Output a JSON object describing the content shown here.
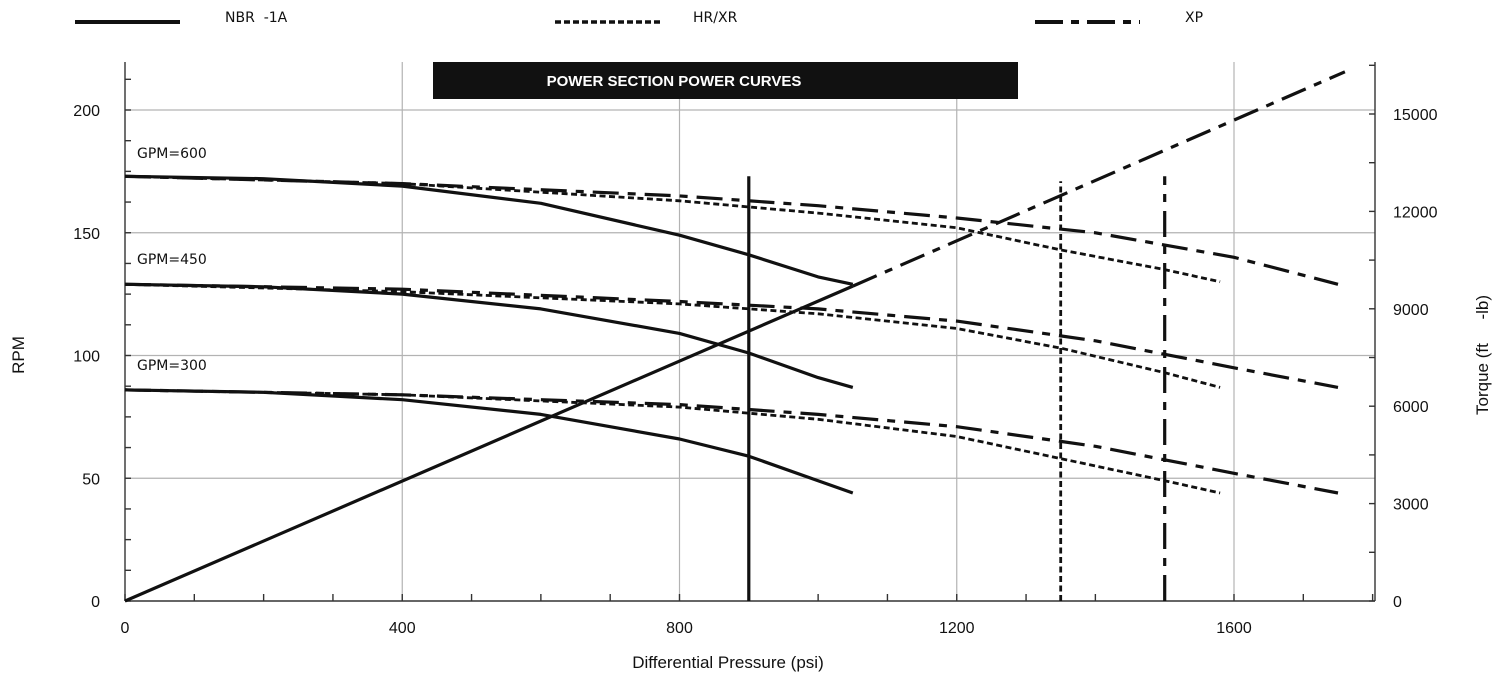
{
  "chart_data": {
    "type": "line",
    "title": "POWER SECTION POWER CURVES",
    "xlabel": "Differential Pressure (psi)",
    "ylabel": "RPM",
    "y2label": "Torque (ft     -lb)",
    "xlim": [
      0,
      1800
    ],
    "ylim": [
      0,
      220
    ],
    "y2lim": [
      0,
      16500
    ],
    "x_ticks": [
      0,
      400,
      800,
      1200,
      1600
    ],
    "y_ticks": [
      0,
      50,
      100,
      150,
      200
    ],
    "y2_ticks": [
      0,
      3000,
      6000,
      9000,
      12000,
      15000
    ],
    "grid": true,
    "legend_position": "top",
    "legend": [
      {
        "label": "NBR  -1A",
        "style": "solid"
      },
      {
        "label": "HR/XR",
        "style": "dotted"
      },
      {
        "label": "XP",
        "style": "dash-dot"
      }
    ],
    "curve_labels": [
      "GPM=600",
      "GPM=450",
      "GPM=300"
    ],
    "series": [
      {
        "name": "NBR  -1A",
        "flow": "GPM=600",
        "axis": "rpm",
        "style": "solid",
        "x": [
          0,
          200,
          400,
          600,
          800,
          900,
          1000,
          1050
        ],
        "y": [
          173,
          172,
          169,
          162,
          149,
          141,
          132,
          129
        ]
      },
      {
        "name": "NBR  -1A",
        "flow": "GPM=450",
        "axis": "rpm",
        "style": "solid",
        "x": [
          0,
          200,
          400,
          600,
          800,
          900,
          1000,
          1050
        ],
        "y": [
          129,
          128,
          125,
          119,
          109,
          101,
          91,
          87
        ]
      },
      {
        "name": "NBR  -1A",
        "flow": "GPM=300",
        "axis": "rpm",
        "style": "solid",
        "x": [
          0,
          200,
          400,
          600,
          800,
          900,
          1000,
          1050
        ],
        "y": [
          86,
          85,
          82,
          76,
          66,
          59,
          49,
          44
        ]
      },
      {
        "name": "HR/XR",
        "flow": "GPM=600",
        "axis": "rpm",
        "style": "dotted",
        "x": [
          0,
          400,
          800,
          1000,
          1200,
          1350,
          1500,
          1580
        ],
        "y": [
          173,
          170,
          163,
          158,
          152,
          143,
          135,
          130
        ]
      },
      {
        "name": "HR/XR",
        "flow": "GPM=450",
        "axis": "rpm",
        "style": "dotted",
        "x": [
          0,
          400,
          800,
          1000,
          1200,
          1350,
          1500,
          1580
        ],
        "y": [
          129,
          126,
          121,
          117,
          111,
          103,
          93,
          87
        ]
      },
      {
        "name": "HR/XR",
        "flow": "GPM=300",
        "axis": "rpm",
        "style": "dotted",
        "x": [
          0,
          400,
          800,
          1000,
          1200,
          1350,
          1500,
          1580
        ],
        "y": [
          86,
          84,
          79,
          74,
          67,
          58,
          49,
          44
        ]
      },
      {
        "name": "XP",
        "flow": "GPM=600",
        "axis": "rpm",
        "style": "dash-dot",
        "x": [
          0,
          400,
          800,
          1000,
          1200,
          1400,
          1600,
          1750
        ],
        "y": [
          173,
          170,
          165,
          161,
          156,
          150,
          140,
          129
        ]
      },
      {
        "name": "XP",
        "flow": "GPM=450",
        "axis": "rpm",
        "style": "dash-dot",
        "x": [
          0,
          400,
          800,
          1000,
          1200,
          1400,
          1600,
          1750
        ],
        "y": [
          129,
          127,
          122,
          119,
          114,
          106,
          95,
          87
        ]
      },
      {
        "name": "XP",
        "flow": "GPM=300",
        "axis": "rpm",
        "style": "dash-dot",
        "x": [
          0,
          400,
          800,
          1000,
          1200,
          1400,
          1600,
          1750
        ],
        "y": [
          86,
          84,
          80,
          76,
          71,
          63,
          52,
          44
        ]
      },
      {
        "name": "NBR  -1A",
        "axis": "torque",
        "style": "solid",
        "x": [
          0,
          1050
        ],
        "y": [
          0,
          9700
        ]
      },
      {
        "name": "XP",
        "axis": "torque",
        "style": "dash-dot",
        "x": [
          1050,
          1760
        ],
        "y": [
          9700,
          16300
        ]
      },
      {
        "name": "NBR  -1A",
        "axis": "pressure-limit",
        "style": "solid",
        "x": [
          900,
          900
        ],
        "y": [
          0,
          173
        ]
      },
      {
        "name": "HR/XR",
        "axis": "pressure-limit",
        "style": "dotted",
        "x": [
          1350,
          1350
        ],
        "y": [
          0,
          171
        ]
      },
      {
        "name": "XP",
        "axis": "pressure-limit",
        "style": "dash-dot",
        "x": [
          1500,
          1500
        ],
        "y": [
          0,
          173
        ]
      }
    ]
  }
}
